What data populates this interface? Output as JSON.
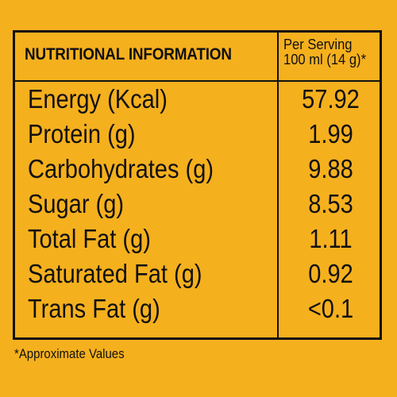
{
  "table": {
    "header_left": "NUTRITIONAL INFORMATION",
    "header_right_line1": "Per Serving",
    "header_right_line2": "100 ml (14 g)*",
    "rows": [
      {
        "label": "Energy (Kcal)",
        "value": "57.92"
      },
      {
        "label": "Protein (g)",
        "value": "1.99"
      },
      {
        "label": "Carbohydrates (g)",
        "value": "9.88"
      },
      {
        "label": "Sugar (g)",
        "value": "8.53"
      },
      {
        "label": "Total Fat (g)",
        "value": "1.11"
      },
      {
        "label": "Saturated Fat (g)",
        "value": "0.92"
      },
      {
        "label": "Trans Fat (g)",
        "value": "<0.1"
      }
    ]
  },
  "footnote": "*Approximate Values",
  "colors": {
    "background": "#F5B01E",
    "ink": "#111111"
  }
}
